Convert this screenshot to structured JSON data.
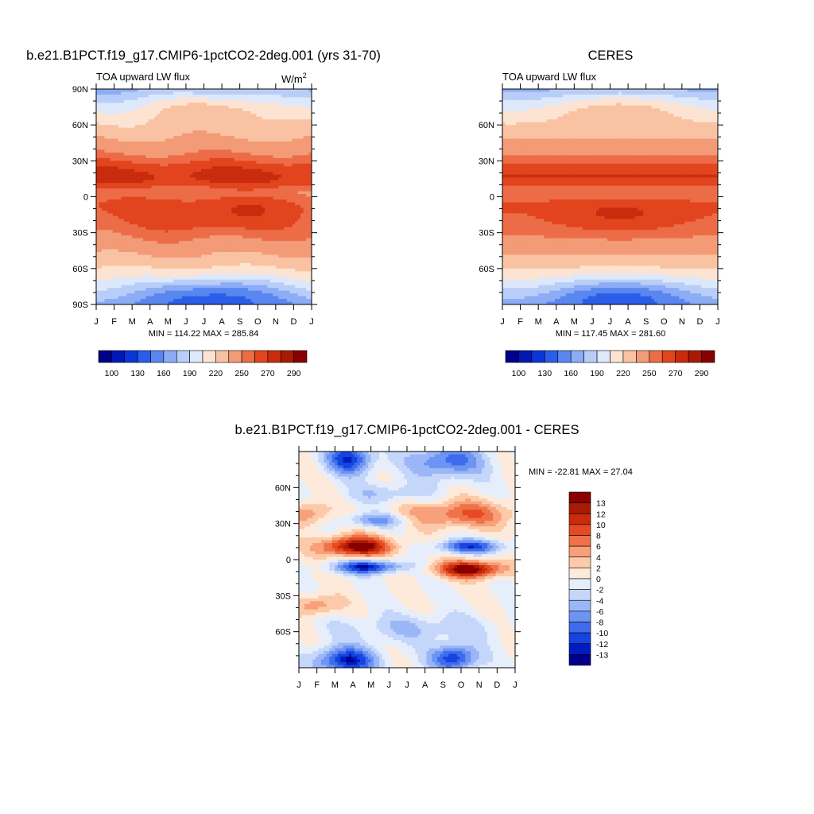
{
  "months": [
    "J",
    "F",
    "M",
    "A",
    "M",
    "J",
    "J",
    "A",
    "S",
    "O",
    "N",
    "D",
    "J"
  ],
  "colors": {
    "abs": [
      "#00008b",
      "#0018b4",
      "#0a36d8",
      "#2a5ee8",
      "#5a86f0",
      "#8cacf5",
      "#b8cef8",
      "#dde8fb",
      "#fde4d2",
      "#f9c2a2",
      "#f39a76",
      "#ec6c48",
      "#e2441e",
      "#c82c0c",
      "#a81a02",
      "#880000"
    ],
    "diff": [
      "#00008b",
      "#001cc0",
      "#1644e0",
      "#3e6cec",
      "#6c94f2",
      "#9ab6f6",
      "#c4d6fa",
      "#e6eefc",
      "#fdeadb",
      "#fccaa9",
      "#f7a07a",
      "#ef7248",
      "#e64a22",
      "#c82c0c",
      "#a81a02",
      "#880000"
    ]
  },
  "chart_data": [
    {
      "type": "heatmap",
      "title": "b.e21.B1PCT.f19_g17.CMIP6-1pctCO2-2deg.001 (yrs 31-70)",
      "subtitle_left": "TOA upward LW flux",
      "units_base": "W/m",
      "units_sup": "2",
      "x_ticks": [
        "J",
        "F",
        "M",
        "A",
        "M",
        "J",
        "J",
        "A",
        "S",
        "O",
        "N",
        "D",
        "J"
      ],
      "y_ticks": [
        "90N",
        "60N",
        "30N",
        "0",
        "30S",
        "60S",
        "90S"
      ],
      "y_tick_values": [
        90,
        60,
        30,
        0,
        -30,
        -60,
        -90
      ],
      "ylim": [
        -90,
        90
      ],
      "min_max_label": "MIN = 114.22 MAX = 285.84",
      "min": 114.22,
      "max": 285.84,
      "colorbar_labels": [
        "100",
        "130",
        "160",
        "190",
        "220",
        "250",
        "270",
        "290"
      ],
      "colorbar_orientation": "horizontal"
    },
    {
      "type": "heatmap",
      "title": "CERES",
      "subtitle_left": "TOA upward LW flux",
      "x_ticks": [
        "J",
        "F",
        "M",
        "A",
        "M",
        "J",
        "J",
        "A",
        "S",
        "O",
        "N",
        "D",
        "J"
      ],
      "y_ticks": [
        "60N",
        "30N",
        "0",
        "30S",
        "60S"
      ],
      "y_tick_values": [
        60,
        30,
        0,
        -30,
        -60
      ],
      "ylim": [
        -90,
        90
      ],
      "min_max_label": "MIN = 117.45 MAX = 281.60",
      "min": 117.45,
      "max": 281.6,
      "colorbar_labels": [
        "100",
        "130",
        "160",
        "190",
        "220",
        "250",
        "270",
        "290"
      ],
      "colorbar_orientation": "horizontal"
    },
    {
      "type": "heatmap",
      "title": "b.e21.B1PCT.f19_g17.CMIP6-1pctCO2-2deg.001 - CERES",
      "x_ticks": [
        "J",
        "F",
        "M",
        "A",
        "M",
        "J",
        "J",
        "A",
        "S",
        "O",
        "N",
        "D",
        "J"
      ],
      "y_ticks": [
        "60N",
        "30N",
        "0",
        "30S",
        "60S"
      ],
      "y_tick_values": [
        60,
        30,
        0,
        -30,
        -60
      ],
      "ylim": [
        -90,
        90
      ],
      "min_max_label": "MIN = -22.81 MAX =  27.04",
      "min": -22.81,
      "max": 27.04,
      "colorbar_labels": [
        "13",
        "12",
        "10",
        "8",
        "6",
        "4",
        "2",
        "0",
        "-2",
        "-4",
        "-6",
        "-8",
        "-10",
        "-12",
        "-13"
      ],
      "colorbar_orientation": "vertical"
    }
  ]
}
